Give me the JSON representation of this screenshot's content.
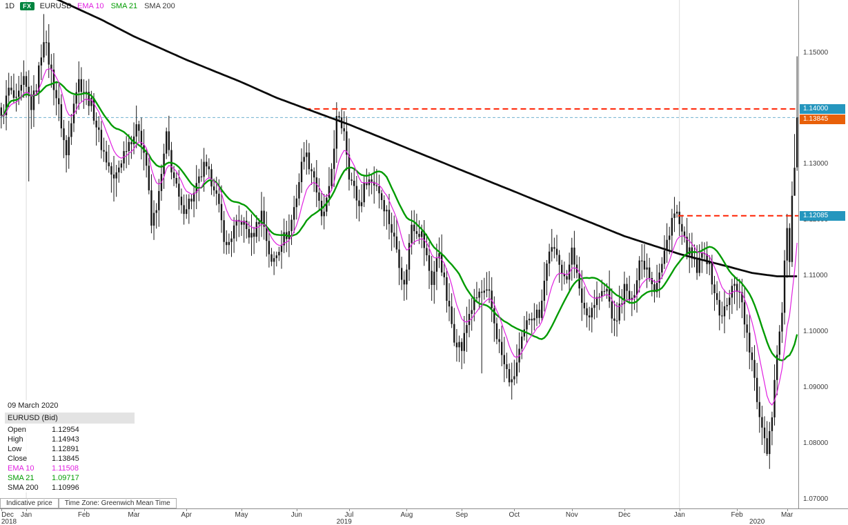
{
  "header": {
    "timeframe": "1D",
    "instrument_badge": "FX",
    "badge_color": "#00843f",
    "symbol": "EURUSD",
    "indicators": [
      {
        "label": "EMA 10",
        "color": "#e020e0"
      },
      {
        "label": "SMA 21",
        "color": "#009b00"
      },
      {
        "label": "SMA 200",
        "color": "#3a3a3a"
      }
    ]
  },
  "info_box": {
    "date": "09 March 2020",
    "title": "EURUSD (Bid)",
    "rows": [
      {
        "label": "Open",
        "value": "1.12954",
        "color": "#1a1a1a"
      },
      {
        "label": "High",
        "value": "1.14943",
        "color": "#1a1a1a"
      },
      {
        "label": "Low",
        "value": "1.12891",
        "color": "#1a1a1a"
      },
      {
        "label": "Close",
        "value": "1.13845",
        "color": "#1a1a1a"
      },
      {
        "label": "EMA 10",
        "value": "1.11508",
        "color": "#e020e0"
      },
      {
        "label": "SMA 21",
        "value": "1.09717",
        "color": "#009b00"
      },
      {
        "label": "SMA 200",
        "value": "1.10996",
        "color": "#1a1a1a"
      }
    ]
  },
  "footer": {
    "indicative_label": "Indicative price",
    "timezone_label": "Time Zone: Greenwich Mean Time"
  },
  "y_axis": {
    "ticks": [
      {
        "label": "1.15000",
        "price": 1.15
      },
      {
        "label": "1.14000",
        "price": 1.14
      },
      {
        "label": "1.13000",
        "price": 1.13
      },
      {
        "label": "1.12000",
        "price": 1.12
      },
      {
        "label": "1.11000",
        "price": 1.11
      },
      {
        "label": "1.10000",
        "price": 1.1
      },
      {
        "label": "1.09000",
        "price": 1.09
      },
      {
        "label": "1.08000",
        "price": 1.08
      },
      {
        "label": "1.07000",
        "price": 1.07
      }
    ]
  },
  "x_axis": {
    "months": [
      {
        "label": "Dec",
        "idx": 0
      },
      {
        "label": "Jan",
        "idx": 10
      },
      {
        "label": "Feb",
        "idx": 33
      },
      {
        "label": "Mar",
        "idx": 53
      },
      {
        "label": "Apr",
        "idx": 74
      },
      {
        "label": "May",
        "idx": 96
      },
      {
        "label": "Jun",
        "idx": 118
      },
      {
        "label": "Jul",
        "idx": 139
      },
      {
        "label": "Aug",
        "idx": 162
      },
      {
        "label": "Sep",
        "idx": 184
      },
      {
        "label": "Oct",
        "idx": 205
      },
      {
        "label": "Nov",
        "idx": 228
      },
      {
        "label": "Dec",
        "idx": 249
      },
      {
        "label": "Jan",
        "idx": 271
      },
      {
        "label": "Feb",
        "idx": 294
      },
      {
        "label": "Mar",
        "idx": 314
      }
    ],
    "years": [
      {
        "label": "2018",
        "idx": 3
      },
      {
        "label": "2019",
        "idx": 137
      },
      {
        "label": "2020",
        "idx": 302
      }
    ]
  },
  "levels": [
    {
      "price": 1.14,
      "label": "1.14000",
      "line_color": "#ff2000",
      "label_bg": "#2596be",
      "label_fg": "#ffffff",
      "x_start_idx": 122,
      "width": 2,
      "dash": "8,5"
    },
    {
      "price": 1.13845,
      "label": "1.13845",
      "line_color": "#6fb1cf",
      "label_bg": "#e8600a",
      "label_fg": "#ffffff",
      "x_start_idx": 0,
      "width": 1,
      "dash": "4,3"
    },
    {
      "price": 1.12085,
      "label": "1.12085",
      "line_color": "#ff2000",
      "label_bg": "#2596be",
      "label_fg": "#ffffff",
      "x_start_idx": 271,
      "width": 2,
      "dash": "8,5"
    }
  ],
  "grid": {
    "year_lines_idx": [
      10,
      271
    ],
    "color": "#dcdcdc"
  },
  "chart_data": {
    "type": "candlestick",
    "symbol": "EURUSD",
    "interval": "1D",
    "title": "EURUSD daily with EMA 10, SMA 21, SMA 200",
    "n_bars": 319,
    "visible_price_range": [
      1.07,
      1.1595
    ],
    "candle_color": "#161616",
    "close_anchors": [
      [
        0,
        1.138
      ],
      [
        3,
        1.1435
      ],
      [
        6,
        1.141
      ],
      [
        9,
        1.1448
      ],
      [
        12,
        1.1405
      ],
      [
        14,
        1.144
      ],
      [
        17,
        1.153
      ],
      [
        20,
        1.1465
      ],
      [
        23,
        1.14
      ],
      [
        26,
        1.1315
      ],
      [
        29,
        1.142
      ],
      [
        31,
        1.145
      ],
      [
        36,
        1.1408
      ],
      [
        40,
        1.1335
      ],
      [
        45,
        1.127
      ],
      [
        50,
        1.1335
      ],
      [
        55,
        1.1368
      ],
      [
        58,
        1.13
      ],
      [
        60,
        1.119
      ],
      [
        63,
        1.1245
      ],
      [
        66,
        1.135
      ],
      [
        68,
        1.1295
      ],
      [
        72,
        1.1218
      ],
      [
        77,
        1.1245
      ],
      [
        81,
        1.1295
      ],
      [
        85,
        1.1265
      ],
      [
        90,
        1.115
      ],
      [
        93,
        1.1185
      ],
      [
        96,
        1.12
      ],
      [
        100,
        1.1168
      ],
      [
        104,
        1.1215
      ],
      [
        108,
        1.112
      ],
      [
        112,
        1.1165
      ],
      [
        115,
        1.118
      ],
      [
        118,
        1.1245
      ],
      [
        121,
        1.1325
      ],
      [
        125,
        1.128
      ],
      [
        128,
        1.12
      ],
      [
        131,
        1.125
      ],
      [
        134,
        1.138
      ],
      [
        137,
        1.1365
      ],
      [
        139,
        1.1285
      ],
      [
        143,
        1.1225
      ],
      [
        146,
        1.1275
      ],
      [
        150,
        1.1265
      ],
      [
        154,
        1.1215
      ],
      [
        158,
        1.115
      ],
      [
        161,
        1.108
      ],
      [
        164,
        1.1195
      ],
      [
        168,
        1.1175
      ],
      [
        172,
        1.109
      ],
      [
        175,
        1.1145
      ],
      [
        178,
        1.106
      ],
      [
        181,
        1.0992
      ],
      [
        184,
        1.097
      ],
      [
        187,
        1.1035
      ],
      [
        191,
        1.107
      ],
      [
        195,
        1.1065
      ],
      [
        198,
        1.0995
      ],
      [
        201,
        1.094
      ],
      [
        204,
        1.0905
      ],
      [
        207,
        1.0965
      ],
      [
        211,
        1.103
      ],
      [
        215,
        1.1035
      ],
      [
        219,
        1.115
      ],
      [
        223,
        1.113
      ],
      [
        226,
        1.1085
      ],
      [
        228,
        1.116
      ],
      [
        231,
        1.107
      ],
      [
        234,
        1.103
      ],
      [
        238,
        1.106
      ],
      [
        242,
        1.1075
      ],
      [
        245,
        1.101
      ],
      [
        249,
        1.1078
      ],
      [
        252,
        1.105
      ],
      [
        255,
        1.113
      ],
      [
        258,
        1.1118
      ],
      [
        261,
        1.108
      ],
      [
        264,
        1.112
      ],
      [
        268,
        1.1205
      ],
      [
        270,
        1.1212
      ],
      [
        272,
        1.117
      ],
      [
        275,
        1.114
      ],
      [
        278,
        1.111
      ],
      [
        281,
        1.115
      ],
      [
        284,
        1.1095
      ],
      [
        287,
        1.103
      ],
      [
        290,
        1.1045
      ],
      [
        293,
        1.1093
      ],
      [
        296,
        1.1055
      ],
      [
        298,
        1.099
      ],
      [
        300,
        1.0945
      ],
      [
        302,
        1.0873
      ],
      [
        304,
        1.0835
      ],
      [
        306,
        1.079
      ],
      [
        308,
        1.0855
      ],
      [
        310,
        1.097
      ],
      [
        312,
        1.103
      ],
      [
        313,
        1.1134
      ],
      [
        314,
        1.1175
      ],
      [
        315,
        1.1134
      ],
      [
        316,
        1.1238
      ],
      [
        317,
        1.1284
      ],
      [
        318,
        1.13845
      ]
    ],
    "key_bars": [
      {
        "i": 11,
        "l": 1.127
      },
      {
        "i": 17,
        "h": 1.157
      },
      {
        "i": 45,
        "l": 1.1234
      },
      {
        "i": 60,
        "l": 1.1177
      },
      {
        "i": 134,
        "h": 1.1412
      },
      {
        "i": 192,
        "l": 1.0926
      },
      {
        "i": 204,
        "l": 1.0879
      },
      {
        "i": 306,
        "l": 1.0778
      },
      {
        "i": 317,
        "h": 1.1355,
        "l": 1.127
      },
      {
        "i": 318,
        "o": 1.12954,
        "h": 1.14943,
        "l": 1.12891,
        "c": 1.13845
      }
    ],
    "indicators": {
      "ema10": {
        "period": 10,
        "color": "#e020e0",
        "width": 1.2,
        "last_value": 1.11508
      },
      "sma21": {
        "period": 21,
        "color": "#009b00",
        "width": 2.4,
        "last_value": 1.09717
      },
      "sma200": {
        "period": 200,
        "color": "#0a0a0a",
        "width": 2.8,
        "last_value": 1.10996,
        "anchors": [
          [
            0,
            1.164
          ],
          [
            23,
            1.1595
          ],
          [
            40,
            1.156
          ],
          [
            53,
            1.153
          ],
          [
            74,
            1.1488
          ],
          [
            96,
            1.1448
          ],
          [
            110,
            1.142
          ],
          [
            122,
            1.14
          ],
          [
            139,
            1.1372
          ],
          [
            162,
            1.133
          ],
          [
            184,
            1.129
          ],
          [
            205,
            1.1252
          ],
          [
            228,
            1.121
          ],
          [
            249,
            1.1172
          ],
          [
            271,
            1.114
          ],
          [
            290,
            1.1118
          ],
          [
            300,
            1.1106
          ],
          [
            310,
            1.11
          ],
          [
            318,
            1.11
          ]
        ]
      }
    }
  }
}
